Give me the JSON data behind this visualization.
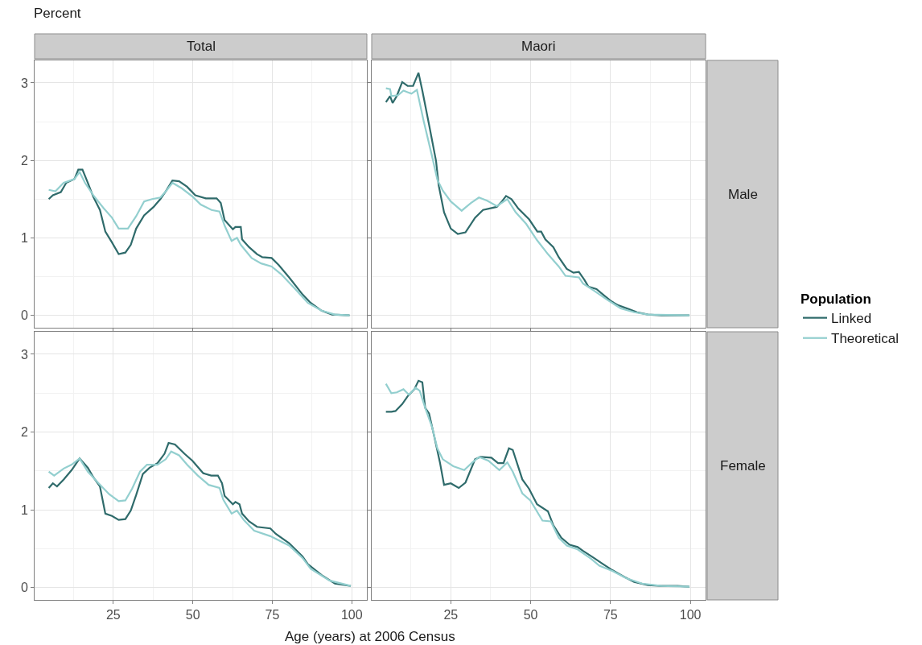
{
  "chart_data": [
    {
      "type": "line",
      "title": "Total",
      "ylabel": "Percent",
      "legend_title": "Population",
      "legend": "right",
      "grid": true,
      "tick_labels": "y",
      "xlim": [
        0.25,
        104.75
      ],
      "ylim": [
        -0.16,
        3.29
      ],
      "xticks": [
        25,
        50,
        75,
        100
      ],
      "yticks": [
        0,
        1,
        2,
        3
      ],
      "series": [
        {
          "name": "Linked",
          "color": "#2f6b6b",
          "x": [
            4.7,
            6,
            8.5,
            10.2,
            12.8,
            14,
            15.3,
            17,
            18.7,
            20.8,
            22.5,
            24.6,
            26.7,
            28.8,
            30.5,
            32.2,
            34.7,
            37.7,
            39.8,
            41.5,
            43.6,
            45.7,
            48.2,
            50.8,
            54.1,
            57.5,
            58.8,
            60,
            62.6,
            63.4,
            65.1,
            65.5,
            67.7,
            70.2,
            71.9,
            74.8,
            77,
            80.3,
            84.5,
            87.1,
            90.5,
            93.8,
            99.3
          ],
          "values": [
            1.5,
            1.55,
            1.59,
            1.71,
            1.76,
            1.88,
            1.88,
            1.71,
            1.53,
            1.36,
            1.08,
            0.94,
            0.79,
            0.81,
            0.91,
            1.12,
            1.29,
            1.4,
            1.5,
            1.6,
            1.74,
            1.73,
            1.66,
            1.55,
            1.51,
            1.51,
            1.45,
            1.23,
            1.11,
            1.14,
            1.14,
            0.98,
            0.88,
            0.79,
            0.75,
            0.74,
            0.65,
            0.49,
            0.27,
            0.16,
            0.06,
            0.01,
            0.0
          ]
        },
        {
          "name": "Theoretical",
          "color": "#93cfcf",
          "x": [
            4.7,
            6.8,
            9.4,
            12.8,
            14.4,
            16.1,
            18.7,
            22,
            24.6,
            26.7,
            29.6,
            32.2,
            34.7,
            37.2,
            39.8,
            41.9,
            43.6,
            46.5,
            50,
            52.5,
            55.9,
            58.4,
            60,
            62.2,
            63.9,
            65.1,
            68.5,
            71.5,
            74.8,
            77.8,
            82,
            86.2,
            90.5,
            94.7,
            99.3
          ],
          "values": [
            1.62,
            1.6,
            1.71,
            1.76,
            1.85,
            1.71,
            1.55,
            1.38,
            1.26,
            1.12,
            1.12,
            1.28,
            1.47,
            1.5,
            1.52,
            1.62,
            1.71,
            1.64,
            1.53,
            1.43,
            1.36,
            1.34,
            1.16,
            0.96,
            1.0,
            0.91,
            0.74,
            0.67,
            0.63,
            0.53,
            0.35,
            0.16,
            0.06,
            0.01,
            0.0
          ]
        }
      ]
    },
    {
      "type": "line",
      "title": "Maori",
      "annotations": [
        "Male"
      ],
      "grid": true,
      "tick_labels": false,
      "xlim": [
        0.25,
        104.75
      ],
      "ylim": [
        -0.16,
        3.29
      ],
      "xticks": [
        25,
        50,
        75,
        100
      ],
      "yticks": [
        0,
        1,
        2,
        3
      ],
      "series": [
        {
          "color": "#2f6b6b",
          "x": [
            4.7,
            6,
            6.8,
            8.1,
            9.8,
            11.5,
            13.2,
            14.9,
            16.1,
            18.3,
            20.4,
            21.2,
            22.9,
            25,
            27.2,
            29.6,
            32.6,
            35.1,
            39.4,
            41,
            42.3,
            44,
            46.1,
            49.5,
            52.1,
            53.3,
            54.6,
            57.1,
            58.8,
            61.3,
            63.4,
            65.1,
            66.8,
            68.1,
            70.6,
            73.2,
            75.3,
            77.4,
            80.7,
            83.3,
            86.7,
            90.9,
            99.7
          ],
          "values": [
            2.75,
            2.83,
            2.74,
            2.83,
            3.01,
            2.96,
            2.96,
            3.13,
            2.9,
            2.44,
            1.99,
            1.68,
            1.33,
            1.12,
            1.05,
            1.07,
            1.26,
            1.36,
            1.4,
            1.47,
            1.54,
            1.5,
            1.38,
            1.24,
            1.08,
            1.08,
            0.98,
            0.88,
            0.75,
            0.6,
            0.55,
            0.56,
            0.46,
            0.37,
            0.34,
            0.25,
            0.18,
            0.13,
            0.08,
            0.04,
            0.01,
            0.0,
            0.0
          ]
        },
        {
          "color": "#93cfcf",
          "x": [
            4.7,
            6,
            6.4,
            8.5,
            10.2,
            12.7,
            14.4,
            16.5,
            19.1,
            20.8,
            22.5,
            25,
            28.4,
            31.3,
            33.8,
            36.4,
            39.4,
            42.7,
            45.3,
            48.6,
            52,
            55.4,
            58.8,
            60.9,
            65.1,
            66.4,
            69.8,
            74,
            78.2,
            82.4,
            86.7,
            99.7
          ],
          "values": [
            2.93,
            2.92,
            2.83,
            2.84,
            2.9,
            2.86,
            2.91,
            2.51,
            2.06,
            1.75,
            1.61,
            1.47,
            1.35,
            1.45,
            1.52,
            1.48,
            1.41,
            1.5,
            1.33,
            1.18,
            0.97,
            0.79,
            0.63,
            0.51,
            0.49,
            0.41,
            0.32,
            0.2,
            0.09,
            0.04,
            0.01,
            0.0
          ]
        }
      ]
    },
    {
      "type": "line",
      "xlabel": "Age (years) at 2006 Census",
      "grid": true,
      "xlim": [
        0.25,
        104.75
      ],
      "ylim": [
        -0.16,
        3.29
      ],
      "xticks": [
        25,
        50,
        75,
        100
      ],
      "yticks": [
        0,
        1,
        2,
        3
      ],
      "series": [
        {
          "color": "#2f6b6b",
          "x": [
            4.7,
            6,
            7.3,
            9.4,
            11.9,
            14.4,
            17,
            18.7,
            20.8,
            22.5,
            24.6,
            26.7,
            28.8,
            30.5,
            32.2,
            34.3,
            36.4,
            38.9,
            41.1,
            42.4,
            44.4,
            47.4,
            49.9,
            53.3,
            55.8,
            57.9,
            59.2,
            60,
            62.6,
            63.4,
            64.7,
            65.5,
            67.7,
            70.2,
            74.4,
            76.1,
            80.3,
            84.5,
            86.2,
            90.5,
            94.7,
            99.7
          ],
          "values": [
            1.28,
            1.34,
            1.3,
            1.39,
            1.51,
            1.66,
            1.54,
            1.42,
            1.3,
            0.95,
            0.92,
            0.87,
            0.88,
            0.99,
            1.19,
            1.46,
            1.54,
            1.6,
            1.72,
            1.86,
            1.84,
            1.72,
            1.63,
            1.47,
            1.44,
            1.44,
            1.34,
            1.18,
            1.07,
            1.1,
            1.07,
            0.95,
            0.85,
            0.78,
            0.76,
            0.69,
            0.57,
            0.4,
            0.3,
            0.16,
            0.05,
            0.02
          ]
        },
        {
          "color": "#93cfcf",
          "x": [
            4.7,
            6.4,
            9.4,
            11.9,
            14.4,
            17,
            20.4,
            23.7,
            26.7,
            28.8,
            30.9,
            33.4,
            35.6,
            38.9,
            41.5,
            43.2,
            45.7,
            48.2,
            51.6,
            55,
            58.4,
            59.6,
            62.2,
            63.9,
            66,
            69.3,
            74.4,
            80.3,
            84.5,
            87.1,
            93,
            99.7
          ],
          "values": [
            1.49,
            1.44,
            1.53,
            1.58,
            1.66,
            1.49,
            1.34,
            1.2,
            1.11,
            1.12,
            1.27,
            1.49,
            1.58,
            1.58,
            1.65,
            1.75,
            1.7,
            1.58,
            1.44,
            1.32,
            1.28,
            1.13,
            0.95,
            0.99,
            0.87,
            0.73,
            0.66,
            0.54,
            0.38,
            0.24,
            0.09,
            0.02
          ]
        }
      ]
    },
    {
      "type": "line",
      "annotations": [
        "Female"
      ],
      "grid": true,
      "tick_labels": "x",
      "xlim": [
        0.25,
        104.75
      ],
      "ylim": [
        -0.16,
        3.29
      ],
      "xticks": [
        25,
        50,
        75,
        100
      ],
      "yticks": [
        0,
        1,
        2,
        3
      ],
      "series": [
        {
          "color": "#2f6b6b",
          "x": [
            4.7,
            6.4,
            7.7,
            9.8,
            11.5,
            13.6,
            14.9,
            16.1,
            17,
            18.2,
            19.9,
            21.6,
            22.9,
            25,
            27.5,
            29.6,
            32.6,
            34.3,
            37.7,
            39.8,
            41.5,
            43.2,
            44.4,
            47.4,
            49.5,
            52,
            55.4,
            57.1,
            59.6,
            62.2,
            64.7,
            66.4,
            69.8,
            72.3,
            75.3,
            79.1,
            82.4,
            86.7,
            90.9,
            95.9,
            99.7
          ],
          "values": [
            2.26,
            2.26,
            2.27,
            2.36,
            2.46,
            2.55,
            2.66,
            2.64,
            2.31,
            2.24,
            1.93,
            1.61,
            1.32,
            1.34,
            1.28,
            1.35,
            1.65,
            1.68,
            1.67,
            1.6,
            1.6,
            1.79,
            1.77,
            1.39,
            1.27,
            1.07,
            0.98,
            0.8,
            0.64,
            0.55,
            0.52,
            0.47,
            0.38,
            0.31,
            0.23,
            0.14,
            0.07,
            0.03,
            0.02,
            0.02,
            0.01
          ]
        },
        {
          "color": "#93cfcf",
          "x": [
            4.7,
            6.4,
            8.1,
            10.2,
            11.9,
            14,
            15.3,
            17,
            19.1,
            20.8,
            22.5,
            25.8,
            29.2,
            31.8,
            33.9,
            36.8,
            40.2,
            42.7,
            44.4,
            47.4,
            49.9,
            53.7,
            56.3,
            58.8,
            61.3,
            64.7,
            68.9,
            71.5,
            75.7,
            79.9,
            84.9,
            90.9,
            99.7
          ],
          "values": [
            2.62,
            2.5,
            2.51,
            2.55,
            2.48,
            2.57,
            2.53,
            2.31,
            2.07,
            1.79,
            1.65,
            1.56,
            1.51,
            1.61,
            1.68,
            1.63,
            1.51,
            1.61,
            1.49,
            1.21,
            1.12,
            0.86,
            0.85,
            0.64,
            0.54,
            0.49,
            0.37,
            0.28,
            0.21,
            0.12,
            0.05,
            0.02,
            0.01
          ]
        }
      ]
    }
  ]
}
